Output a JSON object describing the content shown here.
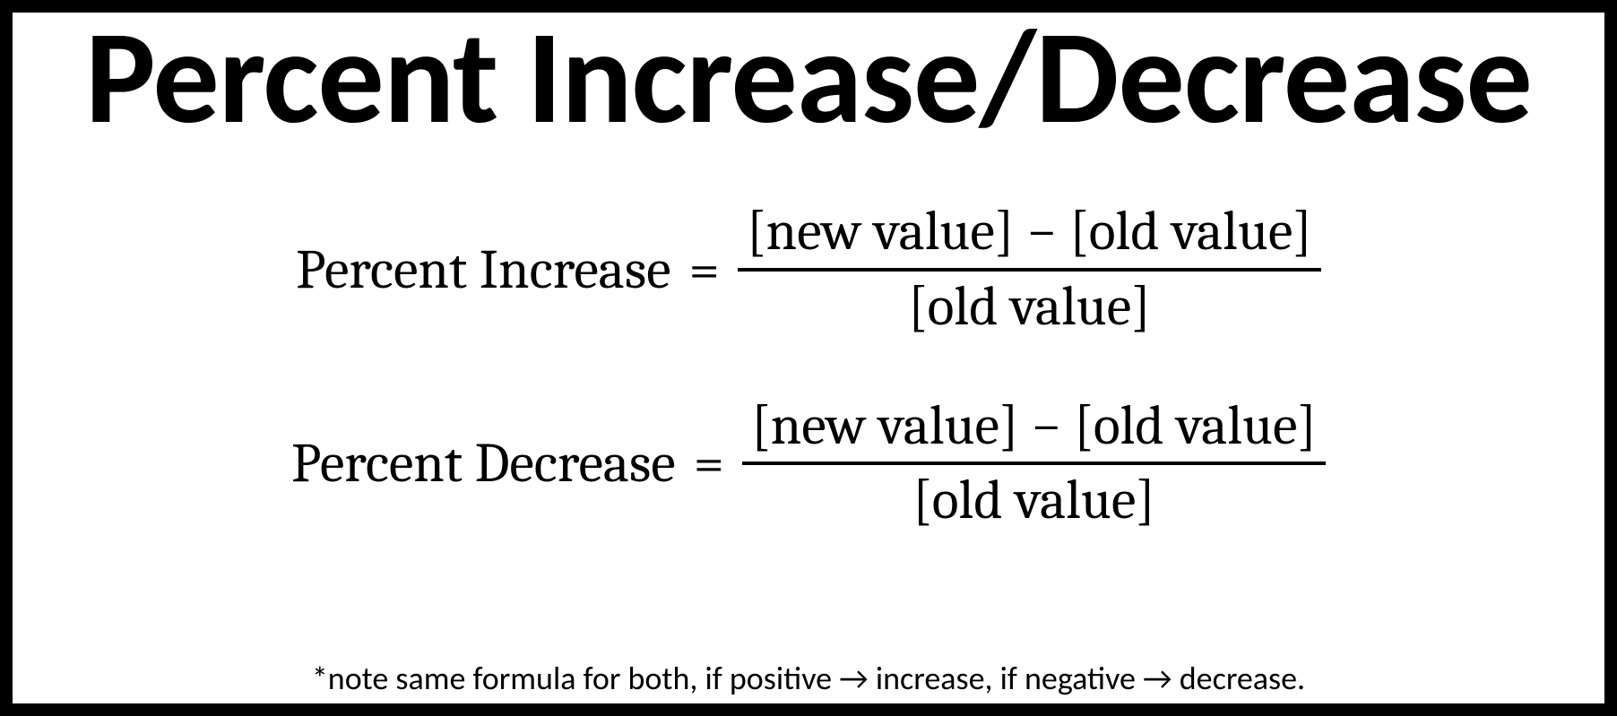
{
  "title": "Percent Increase/Decrease",
  "formula1": {
    "label": "Percent Increase",
    "equals": "=",
    "numerator": "[new value] − [old value]",
    "denominator": "[old value]"
  },
  "formula2": {
    "label": "Percent Decrease",
    "equals": "=",
    "numerator": "[new value] − [old value]",
    "denominator": "[old value]"
  },
  "note": "*note same formula for both, if positive →  increase, if negative → decrease."
}
